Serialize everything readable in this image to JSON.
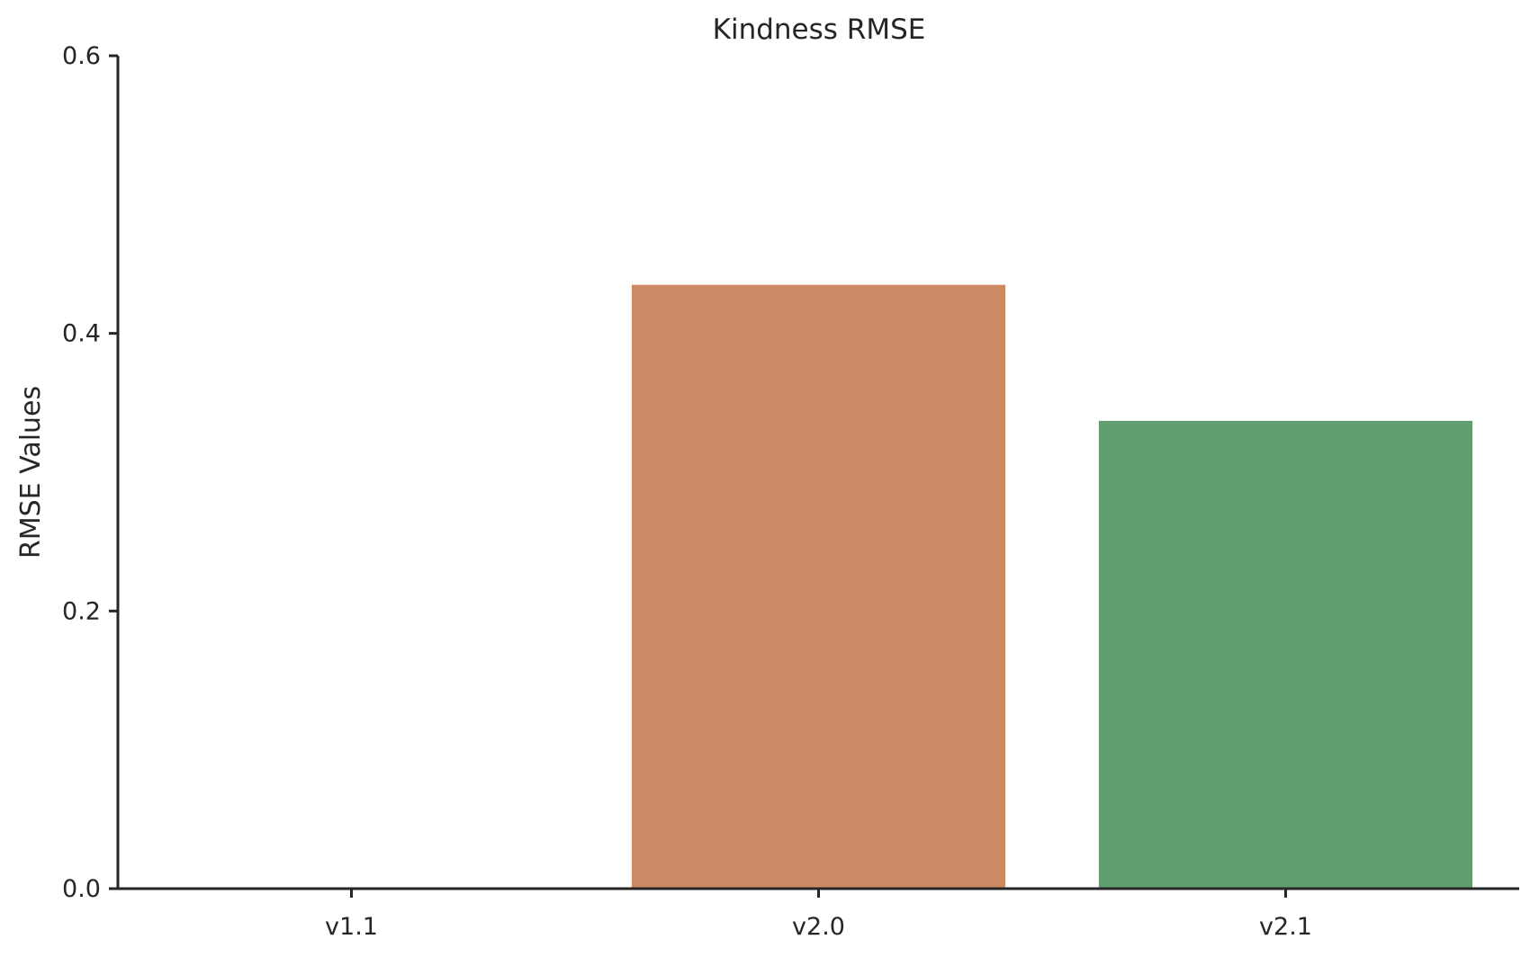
{
  "chart_data": {
    "type": "bar",
    "title": "Kindness RMSE",
    "xlabel": "",
    "ylabel": "RMSE Values",
    "categories": [
      "v1.1",
      "v2.0",
      "v2.1"
    ],
    "values": [
      0.0,
      0.435,
      0.337
    ],
    "colors": [
      "#4c72b0",
      "#cc8963",
      "#5f9e6e"
    ],
    "ylim": [
      0,
      0.6
    ],
    "yticks": [
      0.0,
      0.2,
      0.4,
      0.6
    ],
    "ytick_labels": [
      "0.0",
      "0.2",
      "0.4",
      "0.6"
    ],
    "grid": false,
    "legend": "none"
  }
}
